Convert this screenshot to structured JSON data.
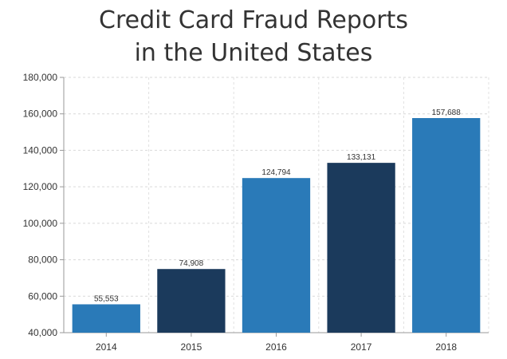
{
  "chart_data": {
    "type": "bar",
    "title_lines": [
      "Credit Card Fraud Reports",
      "in the United States"
    ],
    "categories": [
      "2014",
      "2015",
      "2016",
      "2017",
      "2018"
    ],
    "values": [
      55553,
      74908,
      124794,
      133131,
      157688
    ],
    "value_labels": [
      "55,553",
      "74,908",
      "124,794",
      "133,131",
      "157,688"
    ],
    "bar_colors": [
      "#2a7ab8",
      "#1b3a5c",
      "#2a7ab8",
      "#1b3a5c",
      "#2a7ab8"
    ],
    "ylim": [
      40000,
      180000
    ],
    "yticks": [
      40000,
      60000,
      80000,
      100000,
      120000,
      140000,
      160000,
      180000
    ],
    "ytick_labels": [
      "40,000",
      "60,000",
      "80,000",
      "100,000",
      "120,000",
      "140,000",
      "160,000",
      "180,000"
    ],
    "grid": true,
    "xlabel": "",
    "ylabel": ""
  }
}
